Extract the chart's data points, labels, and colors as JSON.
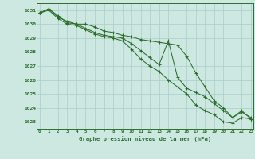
{
  "title": "Graphe pression niveau de la mer (hPa)",
  "hours": [
    0,
    1,
    2,
    3,
    4,
    5,
    6,
    7,
    8,
    9,
    10,
    11,
    12,
    13,
    14,
    15,
    16,
    17,
    18,
    19,
    20,
    21,
    22,
    23
  ],
  "ylim": [
    1022.5,
    1031.5
  ],
  "xlim": [
    -0.3,
    23.3
  ],
  "yticks": [
    1023,
    1024,
    1025,
    1026,
    1027,
    1028,
    1029,
    1030,
    1031
  ],
  "bg_color": "#cce8e0",
  "grid_color": "#aacccc",
  "line_color": "#2d6e2d",
  "line1": [
    1030.8,
    1031.1,
    1030.6,
    1030.1,
    1030.0,
    1029.7,
    1029.4,
    1029.2,
    1029.1,
    1029.0,
    1028.6,
    1028.1,
    1027.6,
    1027.1,
    1028.8,
    1026.2,
    1025.4,
    1025.1,
    1024.8,
    1024.3,
    1023.8,
    1023.3,
    1023.7,
    1023.3
  ],
  "line2": [
    1030.8,
    1031.0,
    1030.4,
    1030.0,
    1029.9,
    1029.6,
    1029.3,
    1029.1,
    1029.0,
    1028.8,
    1028.2,
    1027.5,
    1027.0,
    1026.6,
    1026.0,
    1025.5,
    1025.0,
    1024.2,
    1023.8,
    1023.5,
    1023.0,
    1022.9,
    1023.3,
    1023.2
  ],
  "line3": [
    1030.8,
    1031.1,
    1030.5,
    1030.2,
    1030.0,
    1030.0,
    1029.8,
    1029.5,
    1029.4,
    1029.2,
    1029.1,
    1028.9,
    1028.8,
    1028.7,
    1028.6,
    1028.5,
    1027.7,
    1026.5,
    1025.5,
    1024.5,
    1024.0,
    1023.3,
    1023.8,
    1023.2
  ]
}
